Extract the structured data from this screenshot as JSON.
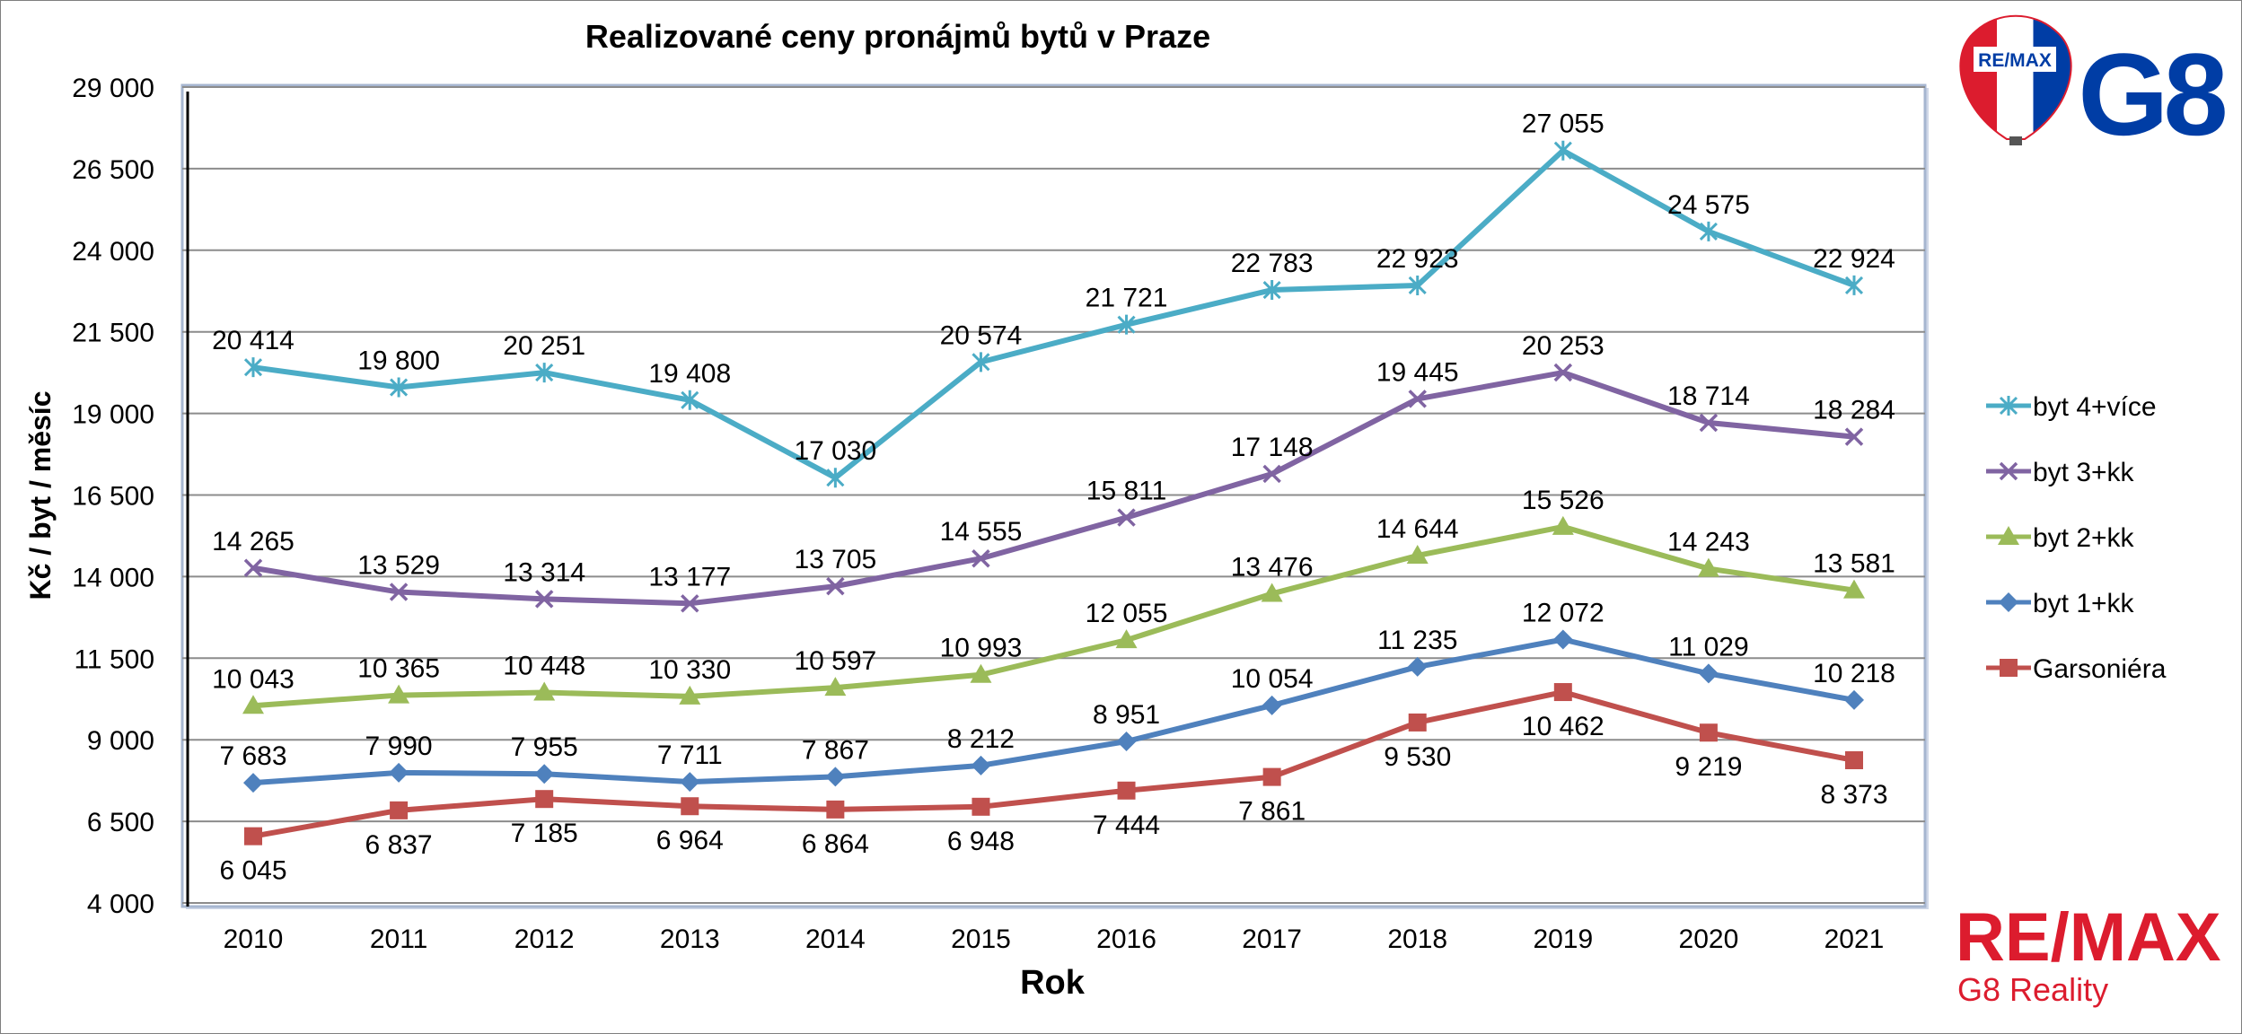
{
  "chart_data": {
    "type": "line",
    "title": "Realizované ceny pronájmů bytů v Praze",
    "xlabel": "Rok",
    "ylabel": "Kč / byt / měsíc",
    "ylim": [
      4000,
      29000
    ],
    "yticks": [
      4000,
      6500,
      9000,
      11500,
      14000,
      16500,
      19000,
      21500,
      24000,
      26500,
      29000
    ],
    "ytick_labels": [
      "4 000",
      "6 500",
      "9 000",
      "11 500",
      "14 000",
      "16 500",
      "19 000",
      "21 500",
      "24 000",
      "26 500",
      "29 000"
    ],
    "categories": [
      "2010",
      "2011",
      "2012",
      "2013",
      "2014",
      "2015",
      "2016",
      "2017",
      "2018",
      "2019",
      "2020",
      "2021"
    ],
    "grid": true,
    "legend_position": "right",
    "series": [
      {
        "name": "byt 4+více",
        "color": "#4bacc6",
        "marker": "asterisk",
        "values": [
          20414,
          19800,
          20251,
          19408,
          17030,
          20574,
          21721,
          22783,
          22923,
          27055,
          24575,
          22924
        ],
        "labels": [
          "20 414",
          "19 800",
          "20 251",
          "19 408",
          "17 030",
          "20 574",
          "21 721",
          "22 783",
          "22 923",
          "27 055",
          "24 575",
          "22 924"
        ],
        "label_side": "above"
      },
      {
        "name": "byt 3+kk",
        "color": "#8064a2",
        "marker": "x",
        "values": [
          14265,
          13529,
          13314,
          13177,
          13705,
          14555,
          15811,
          17148,
          19445,
          20253,
          18714,
          18284
        ],
        "labels": [
          "14 265",
          "13 529",
          "13 314",
          "13 177",
          "13 705",
          "14 555",
          "15 811",
          "17 148",
          "19 445",
          "20 253",
          "18 714",
          "18 284"
        ],
        "label_side": "above"
      },
      {
        "name": "byt 2+kk",
        "color": "#9bbb59",
        "marker": "triangle",
        "values": [
          10043,
          10365,
          10448,
          10330,
          10597,
          10993,
          12055,
          13476,
          14644,
          15526,
          14243,
          13581
        ],
        "labels": [
          "10 043",
          "10 365",
          "10 448",
          "10 330",
          "10 597",
          "10 993",
          "12 055",
          "13 476",
          "14 644",
          "15 526",
          "14 243",
          "13 581"
        ],
        "label_side": "above"
      },
      {
        "name": "byt 1+kk",
        "color": "#4f81bd",
        "marker": "diamond",
        "values": [
          7683,
          7990,
          7955,
          7711,
          7867,
          8212,
          8951,
          10054,
          11235,
          12072,
          11029,
          10218
        ],
        "labels": [
          "7 683",
          "7 990",
          "7 955",
          "7 711",
          "7 867",
          "8 212",
          "8 951",
          "10 054",
          "11 235",
          "12 072",
          "11 029",
          "10 218"
        ],
        "label_side": "above"
      },
      {
        "name": "Garsoniéra",
        "color": "#c0504d",
        "marker": "square",
        "values": [
          6045,
          6837,
          7185,
          6964,
          6864,
          6948,
          7444,
          7861,
          9530,
          10462,
          9219,
          8373
        ],
        "labels": [
          "6 045",
          "6 837",
          "7 185",
          "6 964",
          "6 864",
          "6 948",
          "7 444",
          "7 861",
          "9 530",
          "10 462",
          "9 219",
          "8 373"
        ],
        "label_side": "below"
      }
    ]
  },
  "branding": {
    "top_logo_text": "G8",
    "balloon_text": "RE/MAX",
    "bottom_logo_word": "RE/MAX",
    "bottom_logo_sub": "G8 Reality",
    "brand_red": "#dc1c2e",
    "brand_blue": "#003da5"
  }
}
